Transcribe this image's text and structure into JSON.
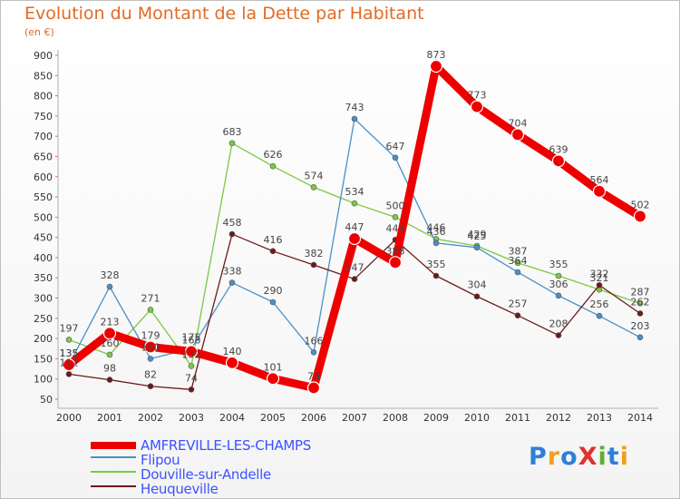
{
  "title": "Evolution du Montant de la Dette par Habitant",
  "unit_label": "(en €)",
  "logo": {
    "text": "ProXiti",
    "colors": [
      "#2f7fd8",
      "#f0a020",
      "#2f7fd8",
      "#e03030",
      "#60b030",
      "#2f7fd8",
      "#f0a020"
    ]
  },
  "chart_data": {
    "type": "line",
    "title": "Evolution du Montant de la Dette par Habitant",
    "ylabel": "(en €)",
    "x": [
      "2000",
      "2001",
      "2002",
      "2003",
      "2004",
      "2005",
      "2006",
      "2007",
      "2008",
      "2009",
      "2010",
      "2011",
      "2012",
      "2013",
      "2014"
    ],
    "ylim": [
      50,
      900
    ],
    "yticks": [
      50,
      100,
      150,
      200,
      250,
      300,
      350,
      400,
      450,
      500,
      550,
      600,
      650,
      700,
      750,
      800,
      850,
      900
    ],
    "grid": false,
    "legend_position": "bottom-left",
    "series": [
      {
        "name": "AMFREVILLE-LES-CHAMPS",
        "color": "#ee0000",
        "values": [
          135,
          213,
          179,
          168,
          140,
          101,
          78,
          447,
          388,
          873,
          773,
          704,
          639,
          564,
          502
        ]
      },
      {
        "name": "Flipou",
        "color": "#4a90c8",
        "values": [
          135,
          328,
          150,
          175,
          338,
          290,
          166,
          743,
          647,
          436,
          425,
          364,
          306,
          256,
          203
        ]
      },
      {
        "name": "Douville-sur-Andelle",
        "color": "#7ac943",
        "values": [
          197,
          160,
          271,
          132,
          683,
          626,
          574,
          534,
          500,
          446,
          429,
          387,
          355,
          321,
          287
        ]
      },
      {
        "name": "Heuqueville",
        "color": "#6b1a1a",
        "values": [
          112,
          98,
          82,
          74,
          458,
          416,
          382,
          347,
          444,
          355,
          304,
          257,
          208,
          332,
          262
        ]
      }
    ]
  }
}
